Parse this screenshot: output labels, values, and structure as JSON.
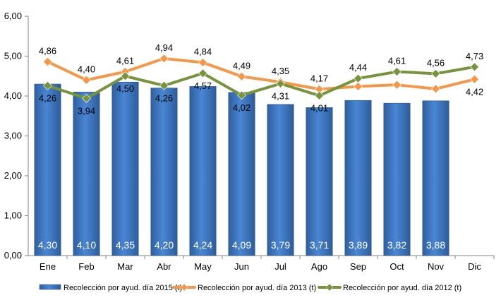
{
  "chart_data": {
    "type": "bar",
    "categories": [
      "Ene",
      "Feb",
      "Mar",
      "Abr",
      "May",
      "Jun",
      "Jul",
      "Ago",
      "Sep",
      "Oct",
      "Nov",
      "Dic"
    ],
    "ylim": [
      0,
      6
    ],
    "yticks": [
      "0,00",
      "1,00",
      "2,00",
      "3,00",
      "4,00",
      "5,00",
      "6,00"
    ],
    "grid": false,
    "legend_position": "bottom",
    "series": [
      {
        "name": "Recolección por ayud. día 2015 (t)",
        "kind": "bar",
        "color": "#3e77c8",
        "values": [
          4.3,
          4.1,
          4.35,
          4.2,
          4.24,
          4.09,
          3.79,
          3.71,
          3.89,
          3.82,
          3.88,
          null
        ],
        "labels": [
          "4,30",
          "4,10",
          "4,35",
          "4,20",
          "4,24",
          "4,09",
          "3,79",
          "3,71",
          "3,89",
          "3,82",
          "3,88",
          ""
        ]
      },
      {
        "name": "Recolección por ayud. día 2013 (t)",
        "kind": "line",
        "color": "#f79646",
        "values": [
          4.86,
          4.4,
          4.61,
          4.94,
          4.84,
          4.49,
          4.35,
          4.17,
          4.24,
          4.28,
          4.18,
          4.42
        ],
        "labels": [
          "4,86",
          "4,40",
          "4,61",
          "4,94",
          "4,84",
          "4,49",
          "4,35",
          "4,17",
          "",
          "",
          "",
          "4,42"
        ]
      },
      {
        "name": "Recolección por ayud. día 2012 (t)",
        "kind": "line",
        "color": "#77933c",
        "values": [
          4.26,
          3.94,
          4.5,
          4.26,
          4.57,
          4.02,
          4.31,
          4.01,
          4.44,
          4.61,
          4.56,
          4.73
        ],
        "labels": [
          "4,26",
          "3,94",
          "4,50",
          "4,26",
          "4,57",
          "4,02",
          "4,31",
          "4,01",
          "4,44",
          "4,61",
          "4,56",
          "4,73"
        ]
      }
    ]
  }
}
